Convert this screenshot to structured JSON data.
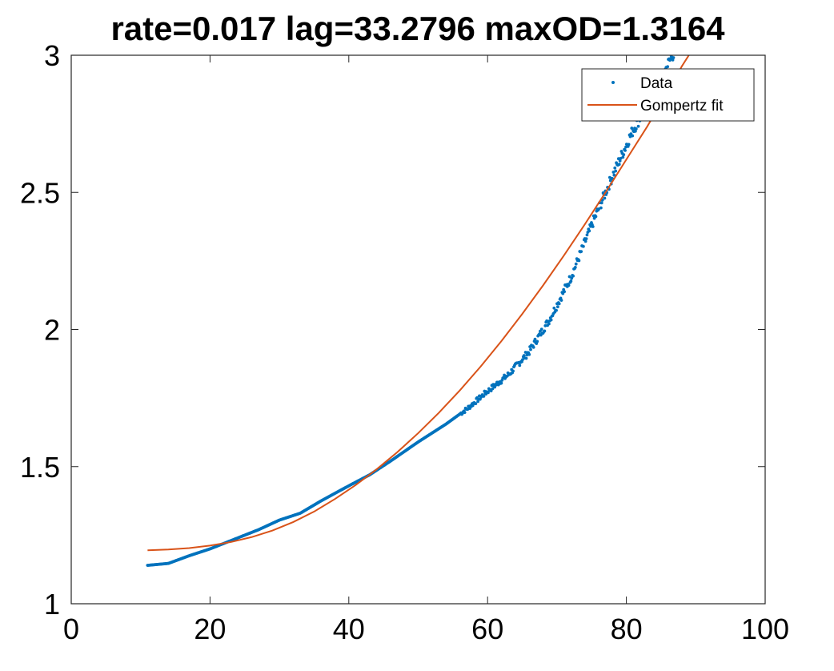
{
  "chart_data": {
    "type": "scatter",
    "title": "rate=0.017 lag=33.2796 maxOD=1.3164",
    "xlabel": "",
    "ylabel": "",
    "xlim": [
      0,
      100
    ],
    "ylim": [
      1,
      3
    ],
    "xticks": [
      0,
      20,
      40,
      60,
      80,
      100
    ],
    "yticks": [
      1,
      1.5,
      2,
      2.5,
      3
    ],
    "xtick_labels": [
      "0",
      "20",
      "40",
      "60",
      "80",
      "100"
    ],
    "ytick_labels": [
      "1",
      "1.5",
      "2",
      "2.5",
      "3"
    ],
    "grid": false,
    "legend_position": "top-right",
    "series": [
      {
        "name": "Data",
        "kind": "scatter",
        "color": "#0072BD",
        "x_range": [
          11,
          87
        ],
        "keypoints": [
          [
            11,
            1.14
          ],
          [
            14,
            1.147
          ],
          [
            17,
            1.175
          ],
          [
            20,
            1.2
          ],
          [
            23,
            1.23
          ],
          [
            27,
            1.27
          ],
          [
            30,
            1.305
          ],
          [
            33,
            1.33
          ],
          [
            36,
            1.375
          ],
          [
            40,
            1.43
          ],
          [
            43,
            1.47
          ],
          [
            46,
            1.52
          ],
          [
            50,
            1.59
          ],
          [
            54,
            1.655
          ],
          [
            57,
            1.71
          ],
          [
            60,
            1.775
          ],
          [
            63,
            1.835
          ],
          [
            66,
            1.92
          ],
          [
            69,
            2.04
          ],
          [
            72,
            2.19
          ],
          [
            75,
            2.38
          ],
          [
            78,
            2.56
          ],
          [
            81,
            2.73
          ],
          [
            84,
            2.86
          ],
          [
            87,
            3.02
          ]
        ]
      },
      {
        "name": "Gompertz fit",
        "kind": "line",
        "color": "#D95319",
        "points": [
          [
            11,
            1.195
          ],
          [
            14,
            1.198
          ],
          [
            17,
            1.203
          ],
          [
            20,
            1.212
          ],
          [
            23,
            1.225
          ],
          [
            26,
            1.243
          ],
          [
            29,
            1.267
          ],
          [
            32,
            1.298
          ],
          [
            35,
            1.336
          ],
          [
            38,
            1.382
          ],
          [
            41,
            1.433
          ],
          [
            44,
            1.49
          ],
          [
            47,
            1.553
          ],
          [
            50,
            1.622
          ],
          [
            53,
            1.697
          ],
          [
            56,
            1.778
          ],
          [
            59,
            1.865
          ],
          [
            62,
            1.958
          ],
          [
            65,
            2.057
          ],
          [
            68,
            2.161
          ],
          [
            71,
            2.27
          ],
          [
            74,
            2.383
          ],
          [
            77,
            2.5
          ],
          [
            80,
            2.62
          ],
          [
            83,
            2.74
          ],
          [
            86,
            2.87
          ],
          [
            88,
            2.96
          ],
          [
            89,
            3.0
          ]
        ]
      }
    ]
  }
}
